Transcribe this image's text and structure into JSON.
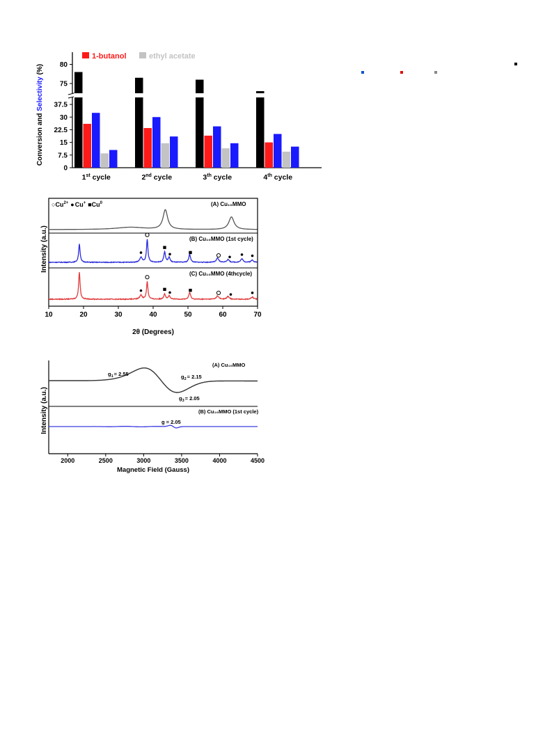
{
  "colors": {
    "conversion": "#000000",
    "selectivity_butanol": "#ff1a1a",
    "selectivity_butanol_blue": "#1a1aff",
    "selectivity_ethyl_acetate": "#c3c3c3",
    "selectivity_ethyl_acetate_blue": "#1a1aff",
    "xrd_a": "#555555",
    "xrd_b": "#2b2bd9",
    "xrd_c": "#e03c3c",
    "epr_a": "#333333",
    "epr_b": "#3a3ae0"
  },
  "chart_data": [
    {
      "type": "bar",
      "ylabel_part1": "Conversion and ",
      "ylabel_part2": "Selectivity",
      "ylabel_part3": " (%)",
      "legend": [
        "1-butanol",
        "ethyl acetate"
      ],
      "categories": [
        {
          "num": "1",
          "sup": "st",
          "word": " cycle"
        },
        {
          "num": "2",
          "sup": "nd",
          "word": " cycle"
        },
        {
          "num": "3",
          "sup": "th",
          "word": " cycle"
        },
        {
          "num": "4",
          "sup": "th",
          "word": " cycle"
        }
      ],
      "series": [
        {
          "values": [
            78,
            76.5,
            76,
            73
          ]
        },
        {
          "values": [
            26,
            23.5,
            19,
            15
          ]
        },
        {
          "values": [
            32.5,
            30,
            24.5,
            20
          ]
        },
        {
          "values": [
            8.5,
            14.5,
            11.5,
            9.5
          ]
        },
        {
          "values": [
            10.5,
            18.5,
            14.5,
            12.5
          ]
        }
      ],
      "lower_ticks": [
        "0",
        "7.5",
        "15",
        "22.5",
        "30",
        "37.5"
      ],
      "upper_ticks": [
        "75",
        "80"
      ],
      "axis_break": true,
      "lower_range": [
        0,
        40
      ],
      "upper_range": [
        73,
        81
      ]
    },
    {
      "type": "line",
      "xlabel": "2θ (Degrees)",
      "ylabel": "Intensity (a.u.)",
      "xlim": [
        10,
        70
      ],
      "xticks": [
        "10",
        "20",
        "30",
        "40",
        "50",
        "60",
        "70"
      ],
      "legend_symbols": {
        "open": "○",
        "filled": "●",
        "square": "■"
      },
      "legend_labels": [
        "Cu",
        "2+",
        "Cu",
        "+",
        "Cu",
        "0"
      ],
      "panels": [
        {
          "label": "(A) Cu₁₀MMO",
          "peaks": [
            {
              "x": 33.5,
              "h": 0.12,
              "w": 5
            },
            {
              "x": 43.5,
              "h": 1.0,
              "w": 0.8
            },
            {
              "x": 62.5,
              "h": 0.65,
              "w": 0.9
            }
          ]
        },
        {
          "label": "(B) Cu₁₀MMO (1st cycle)",
          "peaks": [
            {
              "x": 18.8,
              "h": 0.8,
              "w": 0.25
            },
            {
              "x": 36.5,
              "h": 0.22,
              "w": 0.4
            },
            {
              "x": 38.3,
              "h": 1.0,
              "w": 0.25
            },
            {
              "x": 43.3,
              "h": 0.45,
              "w": 0.3
            },
            {
              "x": 44.6,
              "h": 0.22,
              "w": 0.3
            },
            {
              "x": 50.5,
              "h": 0.35,
              "w": 0.3
            },
            {
              "x": 58.5,
              "h": 0.18,
              "w": 0.4
            },
            {
              "x": 61.5,
              "h": 0.12,
              "w": 0.4
            },
            {
              "x": 65.5,
              "h": 0.15,
              "w": 0.4
            },
            {
              "x": 68.5,
              "h": 0.1,
              "w": 0.4
            }
          ],
          "markers": [
            {
              "x": 36.5,
              "sym": "filled"
            },
            {
              "x": 38.3,
              "sym": "open"
            },
            {
              "x": 43.3,
              "sym": "square"
            },
            {
              "x": 44.8,
              "sym": "filled"
            },
            {
              "x": 50.7,
              "sym": "square"
            },
            {
              "x": 58.8,
              "sym": "open"
            },
            {
              "x": 62,
              "sym": "filled"
            },
            {
              "x": 65.5,
              "sym": "filled"
            },
            {
              "x": 68.5,
              "sym": "filled"
            }
          ]
        },
        {
          "label": "(C) Cu₁₀MMO (4thcycle)",
          "peaks": [
            {
              "x": 18.8,
              "h": 1.0,
              "w": 0.25
            },
            {
              "x": 36.5,
              "h": 0.15,
              "w": 0.4
            },
            {
              "x": 38.3,
              "h": 0.65,
              "w": 0.25
            },
            {
              "x": 43.3,
              "h": 0.2,
              "w": 0.3
            },
            {
              "x": 44.6,
              "h": 0.12,
              "w": 0.3
            },
            {
              "x": 50.5,
              "h": 0.25,
              "w": 0.3
            },
            {
              "x": 58.5,
              "h": 0.12,
              "w": 0.4
            },
            {
              "x": 61.5,
              "h": 0.1,
              "w": 0.4
            },
            {
              "x": 68.5,
              "h": 0.08,
              "w": 0.4
            }
          ],
          "markers": [
            {
              "x": 36.5,
              "sym": "filled"
            },
            {
              "x": 38.3,
              "sym": "open"
            },
            {
              "x": 43.3,
              "sym": "square"
            },
            {
              "x": 44.8,
              "sym": "filled"
            },
            {
              "x": 50.7,
              "sym": "square"
            },
            {
              "x": 58.8,
              "sym": "open"
            },
            {
              "x": 62.3,
              "sym": "filled"
            },
            {
              "x": 68.5,
              "sym": "filled"
            }
          ]
        }
      ]
    },
    {
      "type": "line",
      "xlabel": "Magnetic Field (Gauss)",
      "ylabel": "Intensity (a.u.)",
      "xlim": [
        1750,
        4500
      ],
      "xticks": [
        "2000",
        "2500",
        "3000",
        "3500",
        "4000",
        "4500"
      ],
      "panels": [
        {
          "label": "(A) Cu₁₀MMO",
          "annotations": {
            "g1": "= 2.55",
            "g2": "= 2.15",
            "g3": "= 2.05",
            "g_prefix": "g",
            "s1": "1",
            "s2": "2",
            "s3": "3"
          }
        },
        {
          "label": "(B) Cu₁₀MMO (1st cycle)",
          "annotations": {
            "g": "g = 2.05"
          }
        }
      ]
    }
  ],
  "side_markers": {
    "colors": [
      "#1155cc",
      "#dd1111",
      "#888888",
      "#000000"
    ]
  }
}
